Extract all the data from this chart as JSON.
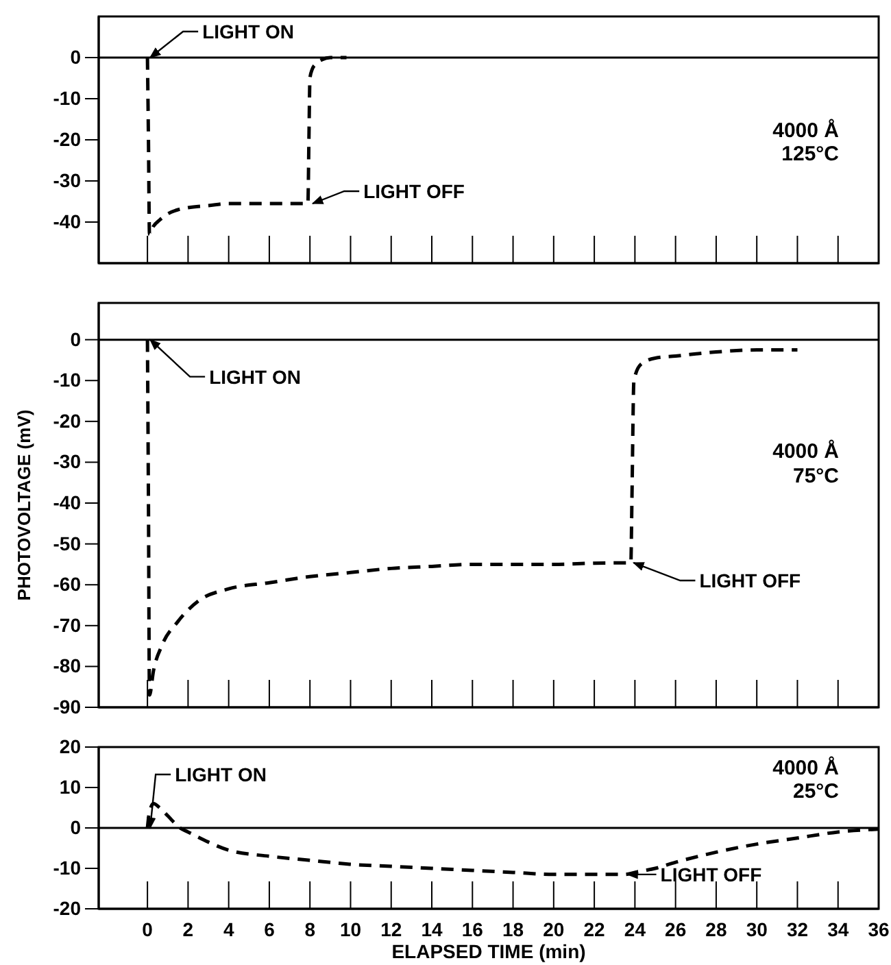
{
  "chart_data": [
    {
      "type": "line",
      "xlim": [
        -2.4,
        36
      ],
      "ylim": [
        -50,
        10
      ],
      "yticks": [
        0,
        -10,
        -20,
        -30,
        -40
      ],
      "tick_labels": "y",
      "line_style": "dashed",
      "grid": false,
      "series": [
        {
          "color": "#000000",
          "x": [
            0,
            0.05,
            0.1,
            0.3,
            0.6,
            1,
            1.5,
            2,
            3,
            4,
            6,
            7.9,
            7.95,
            8.0,
            8.1,
            8.3,
            8.6,
            9,
            9.8
          ],
          "values": [
            0,
            -20,
            -43,
            -41,
            -39.5,
            -38,
            -37,
            -36.5,
            -36,
            -35.5,
            -35.5,
            -35.5,
            -20,
            -5,
            -3,
            -1.5,
            -0.5,
            0,
            0
          ]
        }
      ],
      "ref_lines": [
        {
          "axis": "y",
          "value": 0
        }
      ],
      "annotations": [
        {
          "text": "LIGHT ON",
          "x": 0,
          "y": 0
        },
        {
          "text": "LIGHT OFF",
          "x": 8,
          "y": -35.5
        },
        "4000 Å",
        "125°C"
      ]
    },
    {
      "type": "line",
      "xlim": [
        -2.4,
        36
      ],
      "ylim": [
        -90,
        9
      ],
      "yticks": [
        0,
        -10,
        -20,
        -30,
        -40,
        -50,
        -60,
        -70,
        -80,
        -90
      ],
      "ylabel": "PHOTOVOLTAGE (mV)",
      "tick_labels": "y",
      "line_style": "dashed",
      "grid": false,
      "series": [
        {
          "color": "#000000",
          "x": [
            0,
            0.05,
            0.1,
            0.3,
            0.7,
            1.5,
            2.5,
            4,
            6,
            8,
            10,
            12,
            14,
            16,
            18,
            20,
            22,
            23.8,
            23.85,
            23.95,
            24.3,
            25,
            26,
            28,
            30,
            32
          ],
          "values": [
            0,
            -40,
            -87,
            -81,
            -75,
            -69,
            -64,
            -61,
            -59.5,
            -58,
            -57,
            -56,
            -55.5,
            -55,
            -55,
            -55,
            -54.7,
            -54.6,
            -40,
            -10,
            -6,
            -4.5,
            -4,
            -3,
            -2.5,
            -2.5
          ]
        }
      ],
      "ref_lines": [
        {
          "axis": "y",
          "value": 0
        }
      ],
      "annotations": [
        {
          "text": "LIGHT ON",
          "x": 0,
          "y": 0
        },
        {
          "text": "LIGHT OFF",
          "x": 23.8,
          "y": -54.6
        },
        "4000 Å",
        "75°C"
      ]
    },
    {
      "type": "line",
      "xlim": [
        -2.4,
        36
      ],
      "ylim": [
        -20,
        20
      ],
      "yticks": [
        20,
        10,
        0,
        -10,
        -20
      ],
      "xticks": [
        0,
        2,
        4,
        6,
        8,
        10,
        12,
        14,
        16,
        18,
        20,
        22,
        24,
        26,
        28,
        30,
        32,
        34,
        36
      ],
      "xlabel": "ELAPSED TIME (min)",
      "line_style": "dashed",
      "grid": false,
      "series": [
        {
          "color": "#000000",
          "x": [
            0,
            0.1,
            0.3,
            0.6,
            1,
            1.6,
            2,
            3,
            4,
            6,
            8,
            10,
            12,
            14,
            16,
            18,
            20,
            22,
            23.5,
            24,
            25,
            26,
            28,
            30,
            32,
            34,
            36
          ],
          "values": [
            0,
            4,
            6,
            5,
            3,
            0,
            -1,
            -3.5,
            -5.5,
            -7,
            -8,
            -9,
            -9.5,
            -10,
            -10.5,
            -11,
            -11.5,
            -11.5,
            -11.5,
            -11,
            -10,
            -8.5,
            -6,
            -4,
            -2.5,
            -1,
            -0.3
          ]
        }
      ],
      "ref_lines": [
        {
          "axis": "y",
          "value": 0
        }
      ],
      "annotations": [
        {
          "text": "LIGHT ON",
          "x": 0,
          "y": 0
        },
        {
          "text": "LIGHT OFF",
          "x": 23.5,
          "y": -11.5
        },
        "4000 Å",
        "25°C"
      ]
    }
  ]
}
